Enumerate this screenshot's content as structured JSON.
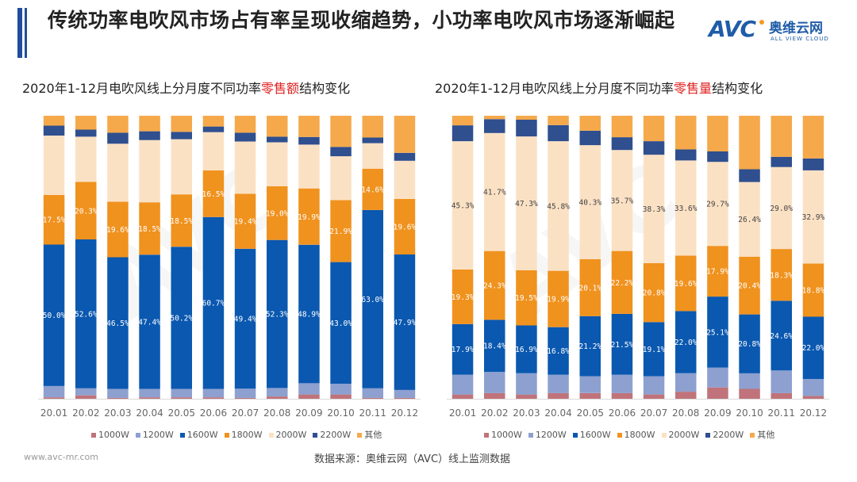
{
  "header": {
    "title": "传统功率电吹风市场占有率呈现收缩趋势，小功率电吹风市场逐渐崛起",
    "logo": {
      "mark": "AVC",
      "name_cn": "奥维云网",
      "name_en": "ALL VIEW CLOUD"
    }
  },
  "colors": {
    "1000W": "#c0737a",
    "1200W": "#8da0cf",
    "1600W": "#0a58b0",
    "1800W": "#f0921e",
    "2000W": "#fbe1c4",
    "2200W": "#2f4f8f",
    "其他": "#f5a94b",
    "title_bar": "#1f4e9c",
    "highlight": "#e02020"
  },
  "legend": [
    "1000W",
    "1200W",
    "1600W",
    "1800W",
    "2000W",
    "2200W",
    "其他"
  ],
  "footer": {
    "url": "www.avc-mr.com",
    "source": "数据来源：奥维云网（AVC）线上监测数据"
  },
  "chart_data": [
    {
      "type": "bar",
      "stacked": true,
      "title_prefix": "2020年1-12月电吹风线上分月度不同功率",
      "title_highlight": "零售额",
      "title_suffix": "结构变化",
      "categories": [
        "20.01",
        "20.02",
        "20.03",
        "20.04",
        "20.05",
        "20.06",
        "20.07",
        "20.08",
        "20.09",
        "20.10",
        "20.11",
        "20.12"
      ],
      "ylim": [
        0,
        100
      ],
      "unit": "%",
      "labeled_series": [
        "1600W",
        "1800W"
      ],
      "series": [
        {
          "name": "1000W",
          "values": [
            0.5,
            1.2,
            0.3,
            0.5,
            0.5,
            0.5,
            0.3,
            0.8,
            1.5,
            1.5,
            0.3,
            0.3
          ]
        },
        {
          "name": "1200W",
          "values": [
            4.0,
            2.5,
            3.2,
            3.0,
            3.0,
            3.0,
            3.3,
            3.0,
            4.0,
            3.8,
            3.4,
            2.8
          ]
        },
        {
          "name": "1600W",
          "values": [
            50.0,
            52.6,
            46.5,
            47.4,
            50.2,
            60.7,
            49.4,
            52.3,
            48.9,
            43.0,
            63.0,
            47.9
          ]
        },
        {
          "name": "1800W",
          "values": [
            17.5,
            20.3,
            19.6,
            18.5,
            18.5,
            16.5,
            19.4,
            19.0,
            19.9,
            21.9,
            14.6,
            19.6
          ]
        },
        {
          "name": "2000W",
          "values": [
            21.0,
            16.0,
            20.5,
            22.0,
            19.5,
            13.5,
            18.5,
            15.5,
            15.5,
            15.5,
            9.0,
            13.5
          ]
        },
        {
          "name": "2200W",
          "values": [
            3.5,
            2.5,
            3.9,
            3.1,
            2.6,
            2.0,
            3.1,
            2.0,
            2.7,
            3.3,
            2.0,
            2.8
          ]
        },
        {
          "name": "其他",
          "values": [
            3.5,
            4.9,
            6.0,
            5.5,
            5.7,
            3.8,
            6.0,
            7.4,
            7.5,
            11.0,
            7.7,
            13.1
          ]
        }
      ]
    },
    {
      "type": "bar",
      "stacked": true,
      "title_prefix": "2020年1-12月电吹风线上分月度不同功率",
      "title_highlight": "零售量",
      "title_suffix": "结构变化",
      "categories": [
        "20.01",
        "20.02",
        "20.03",
        "20.04",
        "20.05",
        "20.06",
        "20.07",
        "20.08",
        "20.09",
        "20.10",
        "20.11",
        "20.12"
      ],
      "ylim": [
        0,
        100
      ],
      "unit": "%",
      "labeled_series": [
        "1600W",
        "1800W",
        "2000W"
      ],
      "series": [
        {
          "name": "1000W",
          "values": [
            1.5,
            2.0,
            1.5,
            2.0,
            2.0,
            2.0,
            1.5,
            2.5,
            4.0,
            3.5,
            2.0,
            1.0
          ]
        },
        {
          "name": "1200W",
          "values": [
            7.0,
            7.5,
            7.5,
            6.5,
            6.0,
            6.5,
            6.5,
            6.5,
            7.0,
            5.5,
            8.0,
            6.0
          ]
        },
        {
          "name": "1600W",
          "values": [
            17.9,
            18.4,
            16.9,
            16.8,
            21.2,
            21.5,
            19.1,
            22.0,
            25.1,
            20.8,
            24.6,
            22.0
          ]
        },
        {
          "name": "1800W",
          "values": [
            19.3,
            24.3,
            19.5,
            19.9,
            20.1,
            22.2,
            20.8,
            19.6,
            17.9,
            20.4,
            18.3,
            18.8
          ]
        },
        {
          "name": "2000W",
          "values": [
            45.3,
            41.7,
            47.3,
            45.8,
            40.3,
            35.7,
            38.3,
            33.6,
            29.7,
            26.4,
            29.0,
            32.9
          ]
        },
        {
          "name": "2200W",
          "values": [
            5.6,
            4.9,
            5.9,
            5.7,
            5.1,
            4.5,
            4.8,
            3.9,
            3.7,
            4.5,
            3.6,
            4.2
          ]
        },
        {
          "name": "其他",
          "values": [
            3.4,
            1.2,
            1.4,
            3.3,
            5.3,
            7.6,
            9.0,
            11.9,
            12.6,
            18.9,
            14.5,
            15.1
          ]
        }
      ]
    }
  ]
}
